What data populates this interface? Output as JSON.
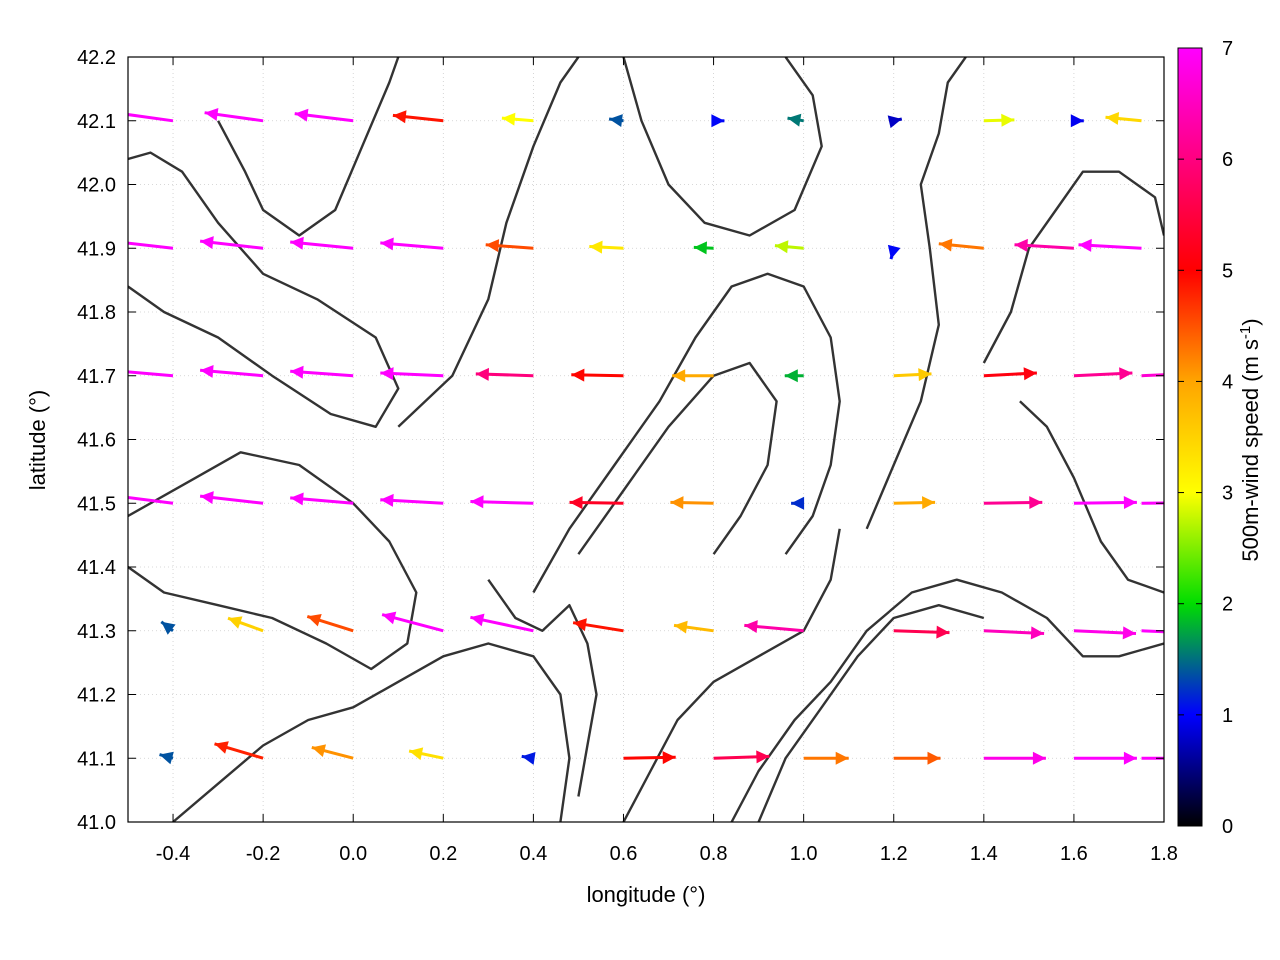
{
  "chart_data": {
    "type": "vector-field",
    "xlabel": "longitude (°)",
    "ylabel": "latitude (°)",
    "xlim": [
      -0.5,
      1.8
    ],
    "ylim": [
      41.0,
      42.2
    ],
    "x_ticks": [
      "-0.4",
      "-0.2",
      "0.0",
      "0.2",
      "0.4",
      "0.6",
      "0.8",
      "1.0",
      "1.2",
      "1.4",
      "1.6",
      "1.8"
    ],
    "x_tick_values": [
      -0.4,
      -0.2,
      0.0,
      0.2,
      0.4,
      0.6,
      0.8,
      1.0,
      1.2,
      1.4,
      1.6,
      1.8
    ],
    "y_ticks": [
      "41.0",
      "41.1",
      "41.2",
      "41.3",
      "41.4",
      "41.5",
      "41.6",
      "41.7",
      "41.8",
      "41.9",
      "42.0",
      "42.1",
      "42.2"
    ],
    "y_tick_values": [
      41.0,
      41.1,
      41.2,
      41.3,
      41.4,
      41.5,
      41.6,
      41.7,
      41.8,
      41.9,
      42.0,
      42.1,
      42.2
    ],
    "grid": true,
    "colorbar": {
      "label": "500m-wind speed (m s",
      "label_sup": "-1",
      "label_end": ")",
      "range": [
        0,
        7
      ],
      "ticks": [
        "0",
        "1",
        "2",
        "3",
        "4",
        "5",
        "6",
        "7"
      ],
      "tick_values": [
        0,
        1,
        2,
        3,
        4,
        5,
        6,
        7
      ],
      "colors": [
        "#000000",
        "#0000ff",
        "#00dd00",
        "#ffff00",
        "#ffa500",
        "#ff0000",
        "#ff00ff"
      ],
      "placement": "right"
    },
    "contour_color": "#333333",
    "vectors": [
      {
        "x": -0.4,
        "y": 42.1,
        "u": -6.5,
        "v": 0.9,
        "speed": 7
      },
      {
        "x": -0.2,
        "y": 42.1,
        "u": -6.5,
        "v": 0.9,
        "speed": 7
      },
      {
        "x": 0.0,
        "y": 42.1,
        "u": -6.5,
        "v": 0.8,
        "speed": 7
      },
      {
        "x": 0.2,
        "y": 42.1,
        "u": -5.6,
        "v": 0.6,
        "speed": 5.7
      },
      {
        "x": 0.4,
        "y": 42.1,
        "u": -3.5,
        "v": 0.3,
        "speed": 3.5
      },
      {
        "x": 0.6,
        "y": 42.1,
        "u": -1.6,
        "v": 0.2,
        "speed": 1.6
      },
      {
        "x": 0.8,
        "y": 42.1,
        "u": 1.2,
        "v": 0.0,
        "speed": 1.2
      },
      {
        "x": 1.0,
        "y": 42.1,
        "u": -1.8,
        "v": 0.3,
        "speed": 1.8
      },
      {
        "x": 1.2,
        "y": 42.1,
        "u": 0.9,
        "v": 0.2,
        "speed": 0.9
      },
      {
        "x": 1.4,
        "y": 42.1,
        "u": 3.4,
        "v": 0.1,
        "speed": 3.4
      },
      {
        "x": 1.6,
        "y": 42.1,
        "u": 1.1,
        "v": 0.0,
        "speed": 1.1
      },
      {
        "x": 1.75,
        "y": 42.1,
        "u": -4.0,
        "v": 0.4,
        "speed": 4.0
      },
      {
        "x": -0.4,
        "y": 41.9,
        "u": -7.0,
        "v": 0.8,
        "speed": 7
      },
      {
        "x": -0.2,
        "y": 41.9,
        "u": -7.0,
        "v": 0.8,
        "speed": 7
      },
      {
        "x": 0.0,
        "y": 41.9,
        "u": -7.0,
        "v": 0.7,
        "speed": 7
      },
      {
        "x": 0.2,
        "y": 41.9,
        "u": -7.0,
        "v": 0.6,
        "speed": 7
      },
      {
        "x": 0.4,
        "y": 41.9,
        "u": -5.3,
        "v": 0.4,
        "speed": 5.3
      },
      {
        "x": 0.6,
        "y": 41.9,
        "u": -3.8,
        "v": 0.2,
        "speed": 3.8
      },
      {
        "x": 0.8,
        "y": 41.9,
        "u": -2.2,
        "v": 0.1,
        "speed": 2.2
      },
      {
        "x": 1.0,
        "y": 41.9,
        "u": -3.2,
        "v": 0.3,
        "speed": 3.2
      },
      {
        "x": 1.2,
        "y": 41.9,
        "u": -0.3,
        "v": -1.2,
        "speed": 1.2
      },
      {
        "x": 1.4,
        "y": 41.9,
        "u": -5.0,
        "v": 0.5,
        "speed": 5.0
      },
      {
        "x": 1.6,
        "y": 41.9,
        "u": -6.6,
        "v": 0.4,
        "speed": 6.6
      },
      {
        "x": 1.75,
        "y": 41.9,
        "u": -7.0,
        "v": 0.4,
        "speed": 7
      },
      {
        "x": -0.4,
        "y": 41.7,
        "u": -7.0,
        "v": 0.6,
        "speed": 7
      },
      {
        "x": -0.2,
        "y": 41.7,
        "u": -7.0,
        "v": 0.6,
        "speed": 7
      },
      {
        "x": 0.0,
        "y": 41.7,
        "u": -7.0,
        "v": 0.5,
        "speed": 7
      },
      {
        "x": 0.2,
        "y": 41.7,
        "u": -7.0,
        "v": 0.3,
        "speed": 7
      },
      {
        "x": 0.4,
        "y": 41.7,
        "u": -6.4,
        "v": 0.2,
        "speed": 6.4
      },
      {
        "x": 0.6,
        "y": 41.7,
        "u": -5.8,
        "v": 0.1,
        "speed": 5.8
      },
      {
        "x": 0.8,
        "y": 41.7,
        "u": -4.6,
        "v": 0.0,
        "speed": 4.6
      },
      {
        "x": 1.0,
        "y": 41.7,
        "u": -2.1,
        "v": 0.0,
        "speed": 2.1
      },
      {
        "x": 1.2,
        "y": 41.7,
        "u": 4.2,
        "v": 0.2,
        "speed": 4.2
      },
      {
        "x": 1.4,
        "y": 41.7,
        "u": 5.9,
        "v": 0.3,
        "speed": 5.9
      },
      {
        "x": 1.6,
        "y": 41.7,
        "u": 6.5,
        "v": 0.3,
        "speed": 6.5
      },
      {
        "x": 1.75,
        "y": 41.7,
        "u": 6.8,
        "v": 0.3,
        "speed": 6.8
      },
      {
        "x": -0.4,
        "y": 41.5,
        "u": -7.0,
        "v": 0.9,
        "speed": 7
      },
      {
        "x": -0.2,
        "y": 41.5,
        "u": -7.0,
        "v": 0.8,
        "speed": 7
      },
      {
        "x": 0.0,
        "y": 41.5,
        "u": -7.0,
        "v": 0.6,
        "speed": 7
      },
      {
        "x": 0.2,
        "y": 41.5,
        "u": -7.0,
        "v": 0.4,
        "speed": 7
      },
      {
        "x": 0.4,
        "y": 41.5,
        "u": -7.0,
        "v": 0.2,
        "speed": 7
      },
      {
        "x": 0.6,
        "y": 41.5,
        "u": -6.0,
        "v": 0.1,
        "speed": 6.0
      },
      {
        "x": 0.8,
        "y": 41.5,
        "u": -4.8,
        "v": 0.1,
        "speed": 4.8
      },
      {
        "x": 1.0,
        "y": 41.5,
        "u": -1.4,
        "v": 0.0,
        "speed": 1.4
      },
      {
        "x": 1.2,
        "y": 41.5,
        "u": 4.6,
        "v": 0.1,
        "speed": 4.6
      },
      {
        "x": 1.4,
        "y": 41.5,
        "u": 6.5,
        "v": 0.1,
        "speed": 6.5
      },
      {
        "x": 1.6,
        "y": 41.5,
        "u": 7.0,
        "v": 0.1,
        "speed": 7
      },
      {
        "x": 1.75,
        "y": 41.5,
        "u": 7.0,
        "v": 0.1,
        "speed": 7
      },
      {
        "x": -0.4,
        "y": 41.3,
        "u": -1.3,
        "v": 1.0,
        "speed": 1.6
      },
      {
        "x": -0.2,
        "y": 41.3,
        "u": -3.9,
        "v": 1.4,
        "speed": 4.1
      },
      {
        "x": 0.0,
        "y": 41.3,
        "u": -5.1,
        "v": 1.6,
        "speed": 5.3
      },
      {
        "x": 0.2,
        "y": 41.3,
        "u": -6.8,
        "v": 1.8,
        "speed": 7
      },
      {
        "x": 0.4,
        "y": 41.3,
        "u": -7.0,
        "v": 1.5,
        "speed": 7
      },
      {
        "x": 0.6,
        "y": 41.3,
        "u": -5.6,
        "v": 0.9,
        "speed": 5.7
      },
      {
        "x": 0.8,
        "y": 41.3,
        "u": -4.4,
        "v": 0.6,
        "speed": 4.4
      },
      {
        "x": 1.0,
        "y": 41.3,
        "u": -6.6,
        "v": 0.6,
        "speed": 6.6
      },
      {
        "x": 1.2,
        "y": 41.3,
        "u": 6.2,
        "v": -0.2,
        "speed": 6.2
      },
      {
        "x": 1.4,
        "y": 41.3,
        "u": 6.7,
        "v": -0.3,
        "speed": 6.7
      },
      {
        "x": 1.6,
        "y": 41.3,
        "u": 6.9,
        "v": -0.3,
        "speed": 6.9
      },
      {
        "x": 1.75,
        "y": 41.3,
        "u": 7.0,
        "v": -0.3,
        "speed": 7
      },
      {
        "x": -0.4,
        "y": 41.1,
        "u": -1.5,
        "v": 0.4,
        "speed": 1.6
      },
      {
        "x": -0.2,
        "y": 41.1,
        "u": -5.4,
        "v": 1.6,
        "speed": 5.6
      },
      {
        "x": 0.0,
        "y": 41.1,
        "u": -4.6,
        "v": 1.2,
        "speed": 4.8
      },
      {
        "x": 0.2,
        "y": 41.1,
        "u": -3.8,
        "v": 0.8,
        "speed": 3.9
      },
      {
        "x": 0.4,
        "y": 41.1,
        "u": -1.3,
        "v": 0.2,
        "speed": 1.3
      },
      {
        "x": 0.6,
        "y": 41.1,
        "u": 5.8,
        "v": 0.1,
        "speed": 5.8
      },
      {
        "x": 0.8,
        "y": 41.1,
        "u": 6.2,
        "v": 0.2,
        "speed": 6.2
      },
      {
        "x": 1.0,
        "y": 41.1,
        "u": 5.0,
        "v": 0.0,
        "speed": 5.0
      },
      {
        "x": 1.2,
        "y": 41.1,
        "u": 5.2,
        "v": 0.0,
        "speed": 5.2
      },
      {
        "x": 1.4,
        "y": 41.1,
        "u": 6.9,
        "v": 0.0,
        "speed": 6.9
      },
      {
        "x": 1.6,
        "y": 41.1,
        "u": 7.0,
        "v": 0.0,
        "speed": 7
      },
      {
        "x": 1.75,
        "y": 41.1,
        "u": 7.0,
        "v": 0.0,
        "speed": 7
      }
    ],
    "contours": [
      [
        [
          -0.5,
          41.84
        ],
        [
          -0.42,
          41.8
        ],
        [
          -0.3,
          41.76
        ],
        [
          -0.18,
          41.7
        ],
        [
          -0.05,
          41.64
        ],
        [
          0.05,
          41.62
        ],
        [
          0.1,
          41.68
        ],
        [
          0.05,
          41.76
        ],
        [
          -0.08,
          41.82
        ],
        [
          -0.2,
          41.86
        ],
        [
          -0.3,
          41.94
        ],
        [
          -0.38,
          42.02
        ],
        [
          -0.45,
          42.05
        ],
        [
          -0.5,
          42.04
        ]
      ],
      [
        [
          -0.5,
          41.48
        ],
        [
          -0.35,
          41.54
        ],
        [
          -0.25,
          41.58
        ],
        [
          -0.12,
          41.56
        ],
        [
          0.0,
          41.5
        ],
        [
          0.08,
          41.44
        ],
        [
          0.14,
          41.36
        ],
        [
          0.12,
          41.28
        ],
        [
          0.04,
          41.24
        ],
        [
          -0.06,
          41.28
        ],
        [
          -0.18,
          41.32
        ],
        [
          -0.3,
          41.34
        ],
        [
          -0.42,
          41.36
        ],
        [
          -0.5,
          41.4
        ]
      ],
      [
        [
          0.1,
          41.62
        ],
        [
          0.22,
          41.7
        ],
        [
          0.3,
          41.82
        ],
        [
          0.34,
          41.94
        ],
        [
          0.4,
          42.06
        ],
        [
          0.46,
          42.16
        ],
        [
          0.5,
          42.2
        ]
      ],
      [
        [
          0.6,
          42.2
        ],
        [
          0.64,
          42.1
        ],
        [
          0.7,
          42.0
        ],
        [
          0.78,
          41.94
        ],
        [
          0.88,
          41.92
        ],
        [
          0.98,
          41.96
        ],
        [
          1.04,
          42.06
        ],
        [
          1.02,
          42.14
        ],
        [
          0.96,
          42.2
        ]
      ],
      [
        [
          0.4,
          41.36
        ],
        [
          0.48,
          41.46
        ],
        [
          0.58,
          41.56
        ],
        [
          0.68,
          41.66
        ],
        [
          0.76,
          41.76
        ],
        [
          0.84,
          41.84
        ],
        [
          0.92,
          41.86
        ],
        [
          1.0,
          41.84
        ],
        [
          1.06,
          41.76
        ],
        [
          1.08,
          41.66
        ],
        [
          1.06,
          41.56
        ],
        [
          1.02,
          41.48
        ],
        [
          0.96,
          41.42
        ]
      ],
      [
        [
          0.5,
          41.42
        ],
        [
          0.6,
          41.52
        ],
        [
          0.7,
          41.62
        ],
        [
          0.8,
          41.7
        ],
        [
          0.88,
          41.72
        ],
        [
          0.94,
          41.66
        ],
        [
          0.92,
          41.56
        ],
        [
          0.86,
          41.48
        ],
        [
          0.8,
          41.42
        ]
      ],
      [
        [
          0.6,
          41.0
        ],
        [
          0.66,
          41.08
        ],
        [
          0.72,
          41.16
        ],
        [
          0.8,
          41.22
        ],
        [
          0.9,
          41.26
        ],
        [
          1.0,
          41.3
        ],
        [
          1.06,
          41.38
        ],
        [
          1.08,
          41.46
        ]
      ],
      [
        [
          0.84,
          41.0
        ],
        [
          0.9,
          41.08
        ],
        [
          0.98,
          41.16
        ],
        [
          1.06,
          41.22
        ],
        [
          1.14,
          41.3
        ],
        [
          1.24,
          41.36
        ],
        [
          1.34,
          41.38
        ],
        [
          1.44,
          41.36
        ],
        [
          1.54,
          41.32
        ],
        [
          1.62,
          41.26
        ],
        [
          1.7,
          41.26
        ],
        [
          1.8,
          41.28
        ]
      ],
      [
        [
          0.9,
          41.0
        ],
        [
          0.96,
          41.1
        ],
        [
          1.04,
          41.18
        ],
        [
          1.12,
          41.26
        ],
        [
          1.2,
          41.32
        ],
        [
          1.3,
          41.34
        ],
        [
          1.4,
          41.32
        ]
      ],
      [
        [
          1.14,
          41.46
        ],
        [
          1.2,
          41.56
        ],
        [
          1.26,
          41.66
        ],
        [
          1.3,
          41.78
        ],
        [
          1.28,
          41.9
        ],
        [
          1.26,
          42.0
        ],
        [
          1.3,
          42.08
        ],
        [
          1.32,
          42.16
        ],
        [
          1.36,
          42.2
        ]
      ],
      [
        [
          1.4,
          41.72
        ],
        [
          1.46,
          41.8
        ],
        [
          1.5,
          41.9
        ],
        [
          1.56,
          41.96
        ],
        [
          1.62,
          42.02
        ],
        [
          1.7,
          42.02
        ],
        [
          1.78,
          41.98
        ],
        [
          1.8,
          41.92
        ]
      ],
      [
        [
          1.48,
          41.66
        ],
        [
          1.54,
          41.62
        ],
        [
          1.6,
          41.54
        ],
        [
          1.66,
          41.44
        ],
        [
          1.72,
          41.38
        ],
        [
          1.8,
          41.36
        ]
      ],
      [
        [
          -0.4,
          41.0
        ],
        [
          -0.3,
          41.06
        ],
        [
          -0.2,
          41.12
        ],
        [
          -0.1,
          41.16
        ],
        [
          0.0,
          41.18
        ],
        [
          0.1,
          41.22
        ],
        [
          0.2,
          41.26
        ],
        [
          0.3,
          41.28
        ],
        [
          0.4,
          41.26
        ],
        [
          0.46,
          41.2
        ],
        [
          0.48,
          41.1
        ],
        [
          0.46,
          41.0
        ]
      ],
      [
        [
          -0.3,
          42.1
        ],
        [
          -0.24,
          42.02
        ],
        [
          -0.2,
          41.96
        ],
        [
          -0.12,
          41.92
        ],
        [
          -0.04,
          41.96
        ],
        [
          0.02,
          42.06
        ],
        [
          0.08,
          42.16
        ],
        [
          0.1,
          42.2
        ]
      ],
      [
        [
          0.3,
          41.38
        ],
        [
          0.36,
          41.32
        ],
        [
          0.42,
          41.3
        ],
        [
          0.48,
          41.34
        ],
        [
          0.52,
          41.28
        ],
        [
          0.54,
          41.2
        ],
        [
          0.52,
          41.12
        ],
        [
          0.5,
          41.04
        ]
      ]
    ]
  }
}
